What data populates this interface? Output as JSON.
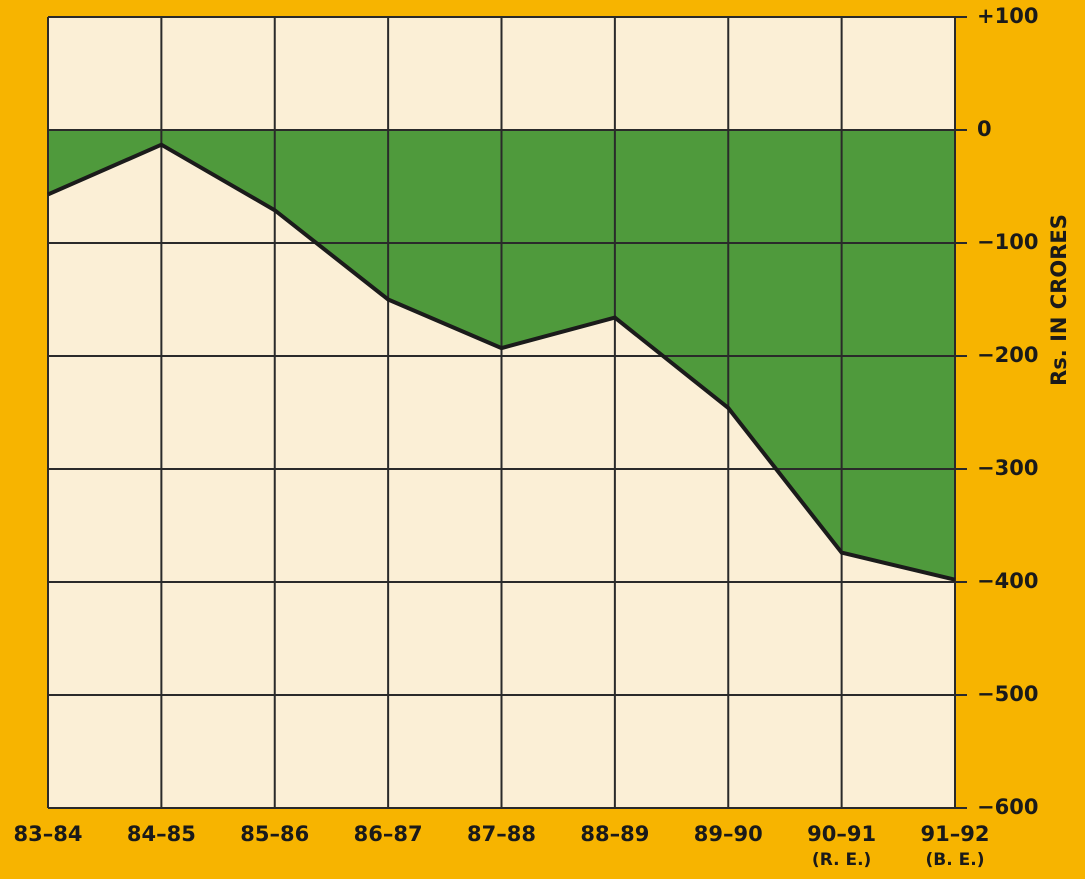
{
  "chart_data": {
    "type": "area",
    "y_label": "Rs. IN CRORES",
    "categories": [
      "83–84",
      "84–85",
      "85–86",
      "86–87",
      "87–88",
      "88–89",
      "89–90",
      "90–91",
      "91–92"
    ],
    "category_notes": [
      null,
      null,
      null,
      null,
      null,
      null,
      null,
      "(R. E.)",
      "(B. E.)"
    ],
    "values": [
      -57,
      -13,
      -71,
      -150,
      -193,
      -166,
      -246,
      -374,
      -398
    ],
    "color": "#4f9a3c",
    "line_color": "#1b1b1b",
    "ylim": [
      -600,
      100
    ],
    "yticks": [
      {
        "value": 100,
        "label": "+100"
      },
      0,
      {
        "value": -100,
        "label": "−100"
      },
      {
        "value": -200,
        "label": "−200"
      },
      {
        "value": -300,
        "label": "−300"
      },
      {
        "value": -400,
        "label": "−400"
      },
      {
        "value": -500,
        "label": "−500"
      },
      {
        "value": -600,
        "label": "−600"
      }
    ],
    "grid": true
  }
}
